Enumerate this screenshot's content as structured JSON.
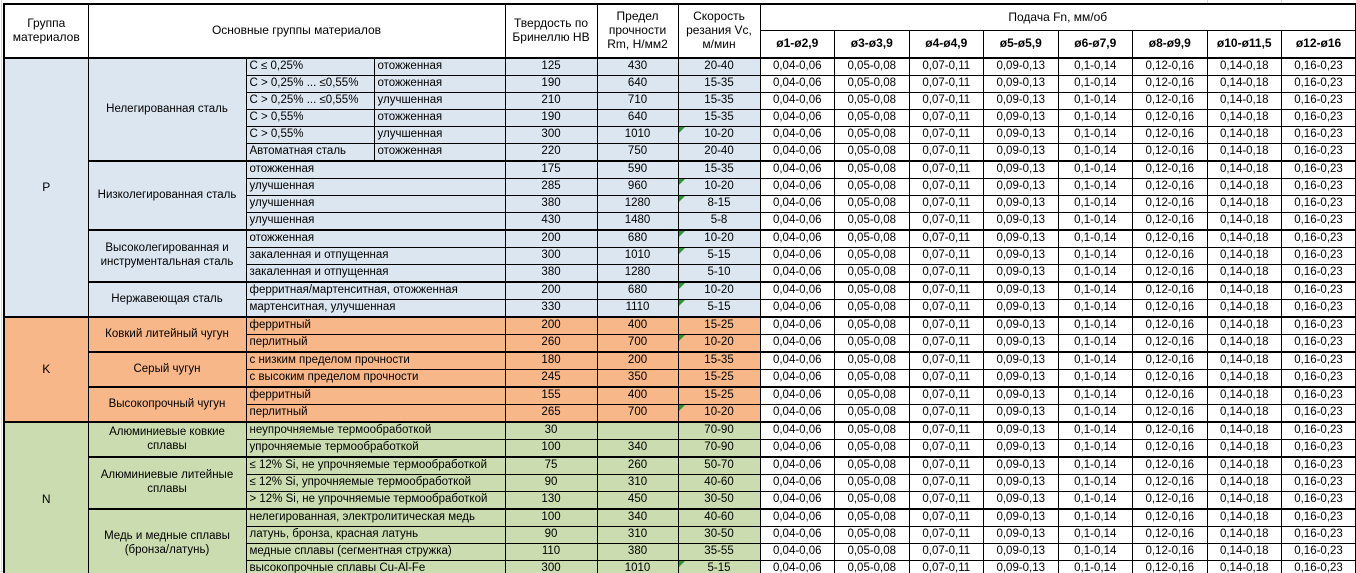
{
  "header": {
    "col_group": "Группа материалов",
    "col_main": "Основные группы материалов",
    "col_hb": "Твердость по Бринеллю HB",
    "col_rm": "Предел прочности Rm, Н/мм2",
    "col_vc": "Скорость резания Vc, м/мин",
    "feed_title": "Подача Fn, мм/об",
    "feed_cols": [
      "ø1-ø2,9",
      "ø3-ø3,9",
      "ø4-ø4,9",
      "ø5-ø5,9",
      "ø6-ø7,9",
      "ø8-ø9,9",
      "ø10-ø11,5",
      "ø12-ø16"
    ]
  },
  "feed_values": [
    "0,04-0,06",
    "0,05-0,08",
    "0,07-0,11",
    "0,09-0,13",
    "0,1-0,14",
    "0,12-0,16",
    "0,14-0,18",
    "0,16-0,23"
  ],
  "colors": {
    "group_p": "#dce6f1",
    "group_k": "#f7b789",
    "group_n": "#cbddb0",
    "note_triangle": "#339433",
    "gridline": "#d0d7e5"
  },
  "groups": [
    {
      "code": "P",
      "color": "#dce6f1",
      "subgroups": [
        {
          "name": "Нелегированная сталь",
          "split": true,
          "rows": [
            {
              "d1": "C ≤ 0,25%",
              "d2": "отожженная",
              "hb": "125",
              "rm": "430",
              "vc": "20-40",
              "note": false
            },
            {
              "d1": "C > 0,25% ... ≤0,55%",
              "d2": "отожженная",
              "hb": "190",
              "rm": "640",
              "vc": "15-35",
              "note": false
            },
            {
              "d1": "C > 0,25% ... ≤0,55%",
              "d2": "улучшенная",
              "hb": "210",
              "rm": "710",
              "vc": "15-35",
              "note": false
            },
            {
              "d1": "C > 0,55%",
              "d2": "отожженная",
              "hb": "190",
              "rm": "640",
              "vc": "15-35",
              "note": false
            },
            {
              "d1": "C > 0,55%",
              "d2": "улучшенная",
              "hb": "300",
              "rm": "1010",
              "vc": "10-20",
              "note": true
            },
            {
              "d1": "Автоматная сталь",
              "d2": "отожженная",
              "hb": "220",
              "rm": "750",
              "vc": "20-40",
              "note": false
            }
          ]
        },
        {
          "name": "Низколегированная сталь",
          "split": false,
          "rows": [
            {
              "d": "отожженная",
              "hb": "175",
              "rm": "590",
              "vc": "15-35",
              "note": false
            },
            {
              "d": "улучшенная",
              "hb": "285",
              "rm": "960",
              "vc": "10-20",
              "note": true
            },
            {
              "d": "улучшенная",
              "hb": "380",
              "rm": "1280",
              "vc": "8-15",
              "note": true
            },
            {
              "d": "улучшенная",
              "hb": "430",
              "rm": "1480",
              "vc": "5-8",
              "note": false
            }
          ]
        },
        {
          "name": "Высоколегированная и инструментальная сталь",
          "split": false,
          "rows": [
            {
              "d": "отожженная",
              "hb": "200",
              "rm": "680",
              "vc": "10-20",
              "note": true
            },
            {
              "d": "закаленная и отпущенная",
              "hb": "300",
              "rm": "1010",
              "vc": "5-15",
              "note": true
            },
            {
              "d": "закаленная и отпущенная",
              "hb": "380",
              "rm": "1280",
              "vc": "5-10",
              "note": false
            }
          ]
        },
        {
          "name": "Нержавеющая сталь",
          "split": false,
          "rows": [
            {
              "d": "ферритная/мартенситная, отожженная",
              "hb": "200",
              "rm": "680",
              "vc": "10-20",
              "note": true
            },
            {
              "d": "мартенситная, улучшенная",
              "hb": "330",
              "rm": "1110",
              "vc": "5-15",
              "note": true
            }
          ]
        }
      ]
    },
    {
      "code": "K",
      "color": "#f7b789",
      "subgroups": [
        {
          "name": "Ковкий литейный чугун",
          "split": false,
          "rows": [
            {
              "d": "ферритный",
              "hb": "200",
              "rm": "400",
              "vc": "15-25",
              "note": false
            },
            {
              "d": "перлитный",
              "hb": "260",
              "rm": "700",
              "vc": "10-20",
              "note": true
            }
          ]
        },
        {
          "name": "Серый чугун",
          "split": false,
          "rows": [
            {
              "d": "с низким пределом прочности",
              "hb": "180",
              "rm": "200",
              "vc": "15-35",
              "note": false
            },
            {
              "d": "с высоким пределом прочности",
              "hb": "245",
              "rm": "350",
              "vc": "15-25",
              "note": false
            }
          ]
        },
        {
          "name": "Высокопрочный чугун",
          "split": false,
          "rows": [
            {
              "d": "ферритный",
              "hb": "155",
              "rm": "400",
              "vc": "15-25",
              "note": false
            },
            {
              "d": "перлитный",
              "hb": "265",
              "rm": "700",
              "vc": "10-20",
              "note": true
            }
          ]
        }
      ]
    },
    {
      "code": "N",
      "color": "#cbddb0",
      "subgroups": [
        {
          "name": "Алюминиевые ковкие сплавы",
          "split": false,
          "rows": [
            {
              "d": "неупрочняемые термообработкой",
              "hb": "30",
              "rm": "",
              "vc": "70-90",
              "note": false
            },
            {
              "d": "упрочняемые термообработкой",
              "hb": "100",
              "rm": "340",
              "vc": "70-90",
              "note": false
            }
          ]
        },
        {
          "name": "Алюминиевые литейные сплавы",
          "split": false,
          "rows": [
            {
              "d": "≤ 12% Si, не упрочняемые термообработкой",
              "hb": "75",
              "rm": "260",
              "vc": "50-70",
              "note": false
            },
            {
              "d": "≤ 12% Si, упрочняемые термообработкой",
              "hb": "90",
              "rm": "310",
              "vc": "40-60",
              "note": false
            },
            {
              "d": "> 12% Si, не упрочняемые термообработкой",
              "hb": "130",
              "rm": "450",
              "vc": "30-50",
              "note": false
            }
          ]
        },
        {
          "name": "Медь и медные сплавы (бронза/латунь)",
          "split": false,
          "rows": [
            {
              "d": "нелегированная, электролитическая медь",
              "hb": "100",
              "rm": "340",
              "vc": "40-60",
              "note": false
            },
            {
              "d": "латунь, бронза, красная латунь",
              "hb": "90",
              "rm": "310",
              "vc": "30-50",
              "note": false
            },
            {
              "d": "медные сплавы (сегментная стружка)",
              "hb": "110",
              "rm": "380",
              "vc": "35-55",
              "note": false
            },
            {
              "d": "высокопрочные сплавы Cu-Al-Fe",
              "hb": "300",
              "rm": "1010",
              "vc": "5-15",
              "note": true
            }
          ]
        }
      ]
    }
  ]
}
